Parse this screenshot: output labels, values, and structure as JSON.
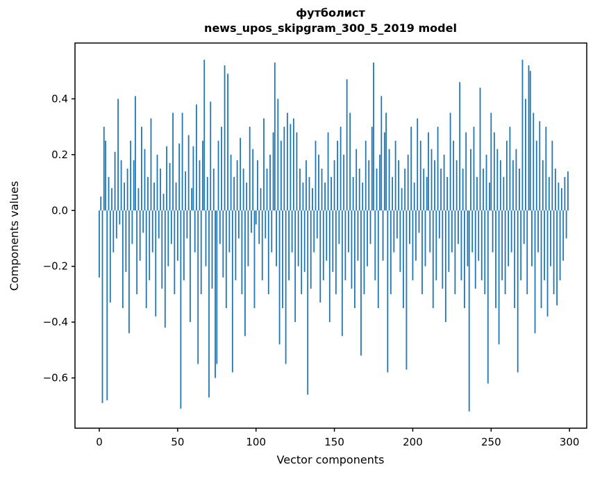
{
  "figure": {
    "title_line1": "футболист",
    "title_line2": "news_upos_skipgram_300_5_2019 model",
    "xlabel": "Vector components",
    "ylabel": "Components values"
  },
  "chart_data": {
    "type": "bar",
    "title": "футболист\nnews_upos_skipgram_300_5_2019 model",
    "xlabel": "Vector components",
    "ylabel": "Components values",
    "bar_color": "#1f77b4",
    "grid": false,
    "legend": "none",
    "xlim": [
      -15.5,
      311
    ],
    "ylim": [
      -0.78,
      0.6
    ],
    "xticks": [
      0,
      50,
      100,
      150,
      200,
      250,
      300
    ],
    "xtick_labels": [
      "0",
      "50",
      "100",
      "150",
      "200",
      "250",
      "300"
    ],
    "yticks": [
      0.4,
      0.2,
      0.0,
      -0.2,
      -0.4,
      -0.6
    ],
    "ytick_labels": [
      "0.4",
      "0.2",
      "0.0",
      "−0.2",
      "−0.4",
      "−0.6"
    ],
    "x_range": [
      0,
      299
    ],
    "values": [
      -0.24,
      0.05,
      -0.69,
      0.3,
      0.25,
      -0.68,
      0.12,
      -0.33,
      0.08,
      -0.15,
      0.21,
      -0.1,
      0.4,
      -0.05,
      0.18,
      -0.35,
      0.1,
      -0.22,
      0.15,
      -0.44,
      0.25,
      -0.12,
      0.18,
      0.41,
      -0.3,
      0.08,
      -0.18,
      0.3,
      -0.08,
      0.22,
      -0.35,
      0.12,
      -0.25,
      0.33,
      -0.15,
      0.1,
      -0.38,
      0.2,
      -0.1,
      0.15,
      -0.28,
      0.06,
      -0.42,
      0.23,
      -0.2,
      0.17,
      -0.12,
      0.35,
      -0.3,
      0.1,
      -0.18,
      0.24,
      -0.71,
      0.35,
      -0.25,
      0.14,
      -0.1,
      0.27,
      -0.4,
      0.08,
      0.23,
      -0.15,
      0.38,
      -0.55,
      0.18,
      -0.3,
      0.25,
      0.54,
      -0.2,
      0.12,
      -0.67,
      0.39,
      -0.28,
      0.15,
      -0.6,
      -0.55,
      0.25,
      -0.12,
      0.3,
      -0.24,
      0.52,
      -0.35,
      0.49,
      -0.15,
      0.2,
      -0.58,
      0.12,
      -0.25,
      0.18,
      -0.1,
      0.26,
      -0.3,
      0.15,
      -0.45,
      0.1,
      -0.2,
      0.3,
      -0.08,
      0.22,
      -0.35,
      -0.05,
      0.18,
      -0.12,
      0.08,
      -0.25,
      0.33,
      -0.1,
      0.15,
      -0.3,
      0.2,
      -0.15,
      0.28,
      0.53,
      -0.2,
      0.4,
      -0.48,
      0.25,
      -0.35,
      0.3,
      -0.55,
      0.35,
      -0.25,
      0.31,
      -0.15,
      0.33,
      -0.4,
      0.28,
      -0.2,
      0.15,
      -0.3,
      0.1,
      -0.22,
      0.18,
      -0.66,
      0.12,
      -0.28,
      0.08,
      -0.15,
      0.25,
      -0.1,
      0.2,
      -0.33,
      0.15,
      -0.25,
      0.1,
      -0.18,
      0.28,
      -0.4,
      0.12,
      -0.22,
      0.18,
      -0.3,
      0.25,
      -0.12,
      0.3,
      -0.45,
      0.2,
      -0.25,
      0.47,
      -0.15,
      0.35,
      -0.28,
      0.12,
      -0.35,
      0.22,
      -0.18,
      0.15,
      -0.52,
      0.1,
      -0.3,
      0.25,
      -0.2,
      0.18,
      -0.12,
      0.3,
      0.53,
      -0.25,
      0.15,
      -0.35,
      0.2,
      0.41,
      -0.18,
      0.28,
      0.35,
      -0.58,
      0.22,
      -0.3,
      0.12,
      -0.15,
      0.25,
      -0.1,
      0.18,
      -0.22,
      0.08,
      -0.35,
      0.15,
      -0.57,
      0.2,
      -0.12,
      0.3,
      -0.25,
      0.1,
      -0.18,
      0.33,
      -0.08,
      0.25,
      -0.3,
      0.15,
      -0.2,
      0.12,
      0.28,
      -0.15,
      0.22,
      -0.35,
      0.18,
      -0.25,
      0.3,
      -0.1,
      0.15,
      -0.28,
      0.2,
      -0.4,
      0.12,
      -0.22,
      0.35,
      -0.15,
      0.25,
      -0.3,
      0.18,
      -0.12,
      0.46,
      -0.25,
      0.15,
      -0.35,
      0.28,
      -0.2,
      -0.72,
      0.22,
      -0.15,
      0.3,
      -0.28,
      0.12,
      -0.18,
      0.44,
      -0.25,
      0.15,
      -0.3,
      0.2,
      -0.62,
      0.1,
      0.35,
      -0.15,
      0.28,
      -0.35,
      0.22,
      -0.48,
      0.18,
      -0.25,
      0.12,
      -0.3,
      0.25,
      -0.2,
      0.3,
      -0.15,
      0.18,
      -0.35,
      0.22,
      -0.58,
      0.15,
      -0.25,
      0.54,
      -0.12,
      0.4,
      -0.3,
      0.52,
      0.5,
      -0.2,
      0.35,
      -0.44,
      0.25,
      -0.15,
      0.32,
      -0.35,
      0.18,
      -0.25,
      0.3,
      -0.38,
      0.12,
      -0.2,
      0.25,
      -0.3,
      0.15,
      -0.34,
      0.1,
      -0.25,
      0.08,
      -0.18,
      0.12,
      -0.1,
      0.14
    ]
  }
}
